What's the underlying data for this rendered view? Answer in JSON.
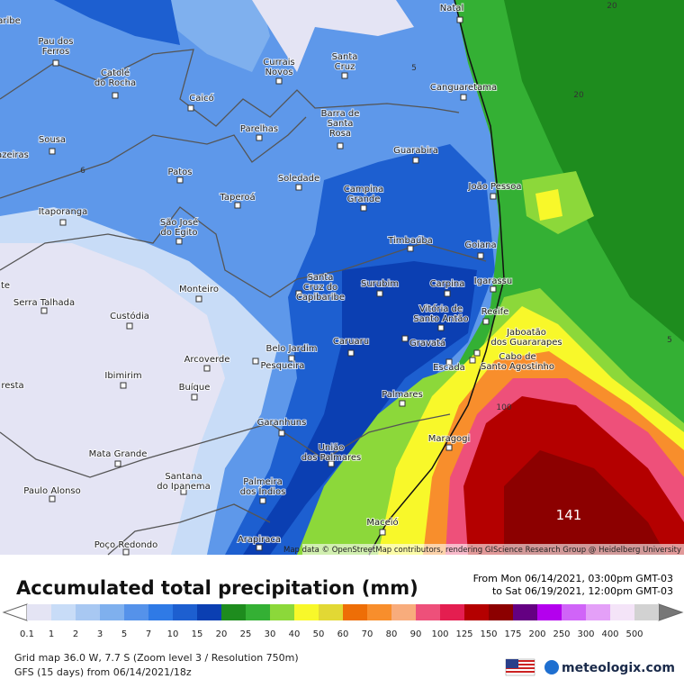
{
  "map": {
    "attribution": "Map data © OpenStreetMap contributors, rendering GIScience Research Group @ Heidelberg University",
    "cities": [
      {
        "label": [
          "Natal"
        ]
      },
      {
        "label": [
          "aribe"
        ]
      },
      {
        "label": [
          "Pau dos",
          "Ferros"
        ]
      },
      {
        "label": [
          "Catolé",
          "do Rocha"
        ]
      },
      {
        "label": [
          "Caicó"
        ]
      },
      {
        "label": [
          "Currais",
          "Novos"
        ]
      },
      {
        "label": [
          "Santa",
          "Cruz"
        ]
      },
      {
        "label": [
          "Canguaretama"
        ]
      },
      {
        "label": [
          "Barra de",
          "Santa",
          "Rosa"
        ]
      },
      {
        "label": [
          "Sousa"
        ]
      },
      {
        "label": [
          "azeiras"
        ]
      },
      {
        "label": [
          "Parelhas"
        ]
      },
      {
        "label": [
          "Guarabira"
        ]
      },
      {
        "label": [
          "Patos"
        ]
      },
      {
        "label": [
          "Soledade"
        ]
      },
      {
        "label": [
          "João Pessoa"
        ]
      },
      {
        "label": [
          "Campina",
          "Grande"
        ]
      },
      {
        "label": [
          "Taperoá"
        ]
      },
      {
        "label": [
          "Itaporanga"
        ]
      },
      {
        "label": [
          "São José",
          "do Egito"
        ]
      },
      {
        "label": [
          "Timbaúba"
        ]
      },
      {
        "label": [
          "Goiana"
        ]
      },
      {
        "label": [
          "Serra Talhada"
        ]
      },
      {
        "label": [
          "Monteiro"
        ]
      },
      {
        "label": [
          "Santa",
          "Cruz do",
          "Capibaribe"
        ]
      },
      {
        "label": [
          "Surubim"
        ]
      },
      {
        "label": [
          "Carpina"
        ]
      },
      {
        "label": [
          "Igarassu"
        ]
      },
      {
        "label": [
          "te"
        ]
      },
      {
        "label": [
          "Vitória de",
          "Santo Antão"
        ]
      },
      {
        "label": [
          "Recife"
        ]
      },
      {
        "label": [
          "Custódia"
        ]
      },
      {
        "label": [
          "Jaboatão",
          "dos Guararapes"
        ]
      },
      {
        "label": [
          "Caruaru"
        ]
      },
      {
        "label": [
          "Gravatá"
        ]
      },
      {
        "label": [
          "Belo Jardim"
        ]
      },
      {
        "label": [
          "Pesqueira"
        ]
      },
      {
        "label": [
          "Arcoverde"
        ]
      },
      {
        "label": [
          "Escada"
        ]
      },
      {
        "label": [
          "Cabo de",
          "Santo Agostinho"
        ]
      },
      {
        "label": [
          "Ibimirim"
        ]
      },
      {
        "label": [
          "resta"
        ]
      },
      {
        "label": [
          "Buíque"
        ]
      },
      {
        "label": [
          "Palmares"
        ]
      },
      {
        "label": [
          "Garanhuns"
        ]
      },
      {
        "label": [
          "Maragogi"
        ]
      },
      {
        "label": [
          "União",
          "dos Palmares"
        ]
      },
      {
        "label": [
          "Mata Grande"
        ]
      },
      {
        "label": [
          "Santana",
          "do Ipanema"
        ]
      },
      {
        "label": [
          "Palmeira",
          "dos Índios"
        ]
      },
      {
        "label": [
          "Paulo Alonso"
        ]
      },
      {
        "label": [
          "Maceió"
        ]
      },
      {
        "label": [
          "Arapiraca"
        ]
      },
      {
        "label": [
          "Poço Redondo"
        ]
      }
    ],
    "contour_labels": [
      20,
      20,
      5,
      6,
      5,
      100
    ],
    "max_value": 141
  },
  "header": {
    "title": "Accumulated total precipitation (mm)",
    "period_from": "From Mon 06/14/2021, 03:00pm GMT-03",
    "period_to": "to Sat 06/19/2021, 12:00pm GMT-03"
  },
  "legend": {
    "values": [
      0.1,
      1,
      2,
      3,
      5,
      7,
      10,
      15,
      20,
      25,
      30,
      40,
      50,
      60,
      70,
      80,
      90,
      100,
      125,
      150,
      175,
      200,
      250,
      300,
      400,
      500
    ],
    "colors": [
      "#e4e4f4",
      "#c8dcf7",
      "#a8c8f2",
      "#7fb0ee",
      "#5592ea",
      "#2f7ae6",
      "#1d5fd0",
      "#0b3fb2",
      "#1e8c1e",
      "#34b034",
      "#8cd83a",
      "#f8f82a",
      "#e2d834",
      "#ee6e06",
      "#f88e2c",
      "#f8ac7c",
      "#ee507a",
      "#e41e50",
      "#b40000",
      "#8c0000",
      "#640082",
      "#b400ee",
      "#d064f8",
      "#e4a0f8",
      "#f4e4f8",
      "#d2d2d2"
    ]
  },
  "footer": {
    "grid_info": "Grid map 36.0 W, 7.7 S (Zoom level 3 / Resolution 750m)",
    "model_info": "GFS (15 days) from 06/14/2021/18z",
    "brand": "meteologix.com"
  }
}
